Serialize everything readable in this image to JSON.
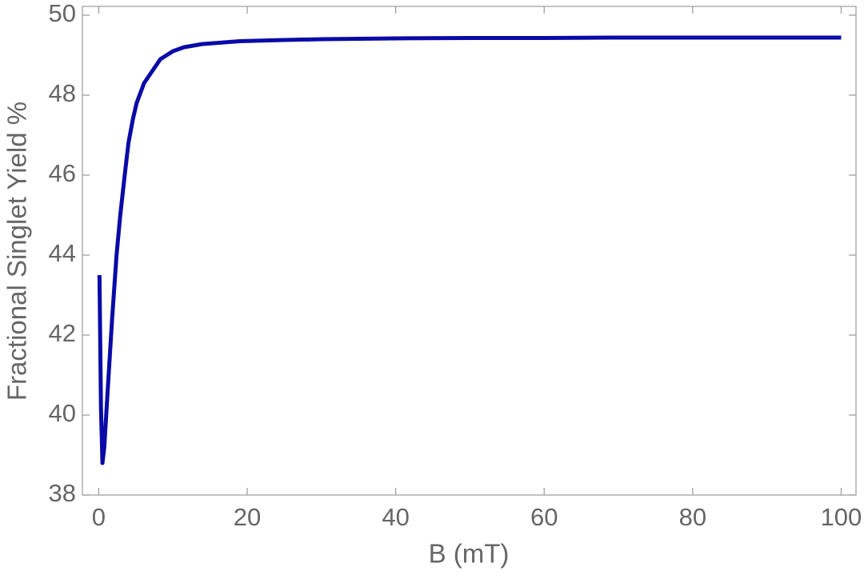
{
  "chart_data": {
    "type": "line",
    "xlabel": "B (mT)",
    "ylabel": "Fractional Singlet Yield %",
    "x": [
      0.1,
      0.3,
      0.5,
      0.75,
      1.2,
      1.8,
      2.4,
      2.9,
      3.5,
      4,
      4.6,
      5.1,
      6.1,
      7.2,
      8.3,
      10,
      11.5,
      14,
      19,
      25,
      30,
      40,
      50,
      60,
      70,
      80,
      90,
      100
    ],
    "series": [
      {
        "name": "Singlet yield",
        "color": "#0a0aa8",
        "values": [
          43.5,
          40.2,
          38.8,
          39.2,
          40.6,
          42.4,
          44.0,
          45.0,
          46.0,
          46.8,
          47.4,
          47.8,
          48.3,
          48.6,
          48.9,
          49.1,
          49.2,
          49.28,
          49.35,
          49.38,
          49.4,
          49.42,
          49.43,
          49.43,
          49.44,
          49.44,
          49.44,
          49.44
        ]
      }
    ],
    "xlim": [
      -2.2,
      102
    ],
    "ylim": [
      38,
      50.22
    ],
    "xticks": [
      0,
      20,
      40,
      60,
      80,
      100
    ],
    "yticks": [
      38,
      40,
      42,
      44,
      46,
      48,
      50
    ]
  }
}
